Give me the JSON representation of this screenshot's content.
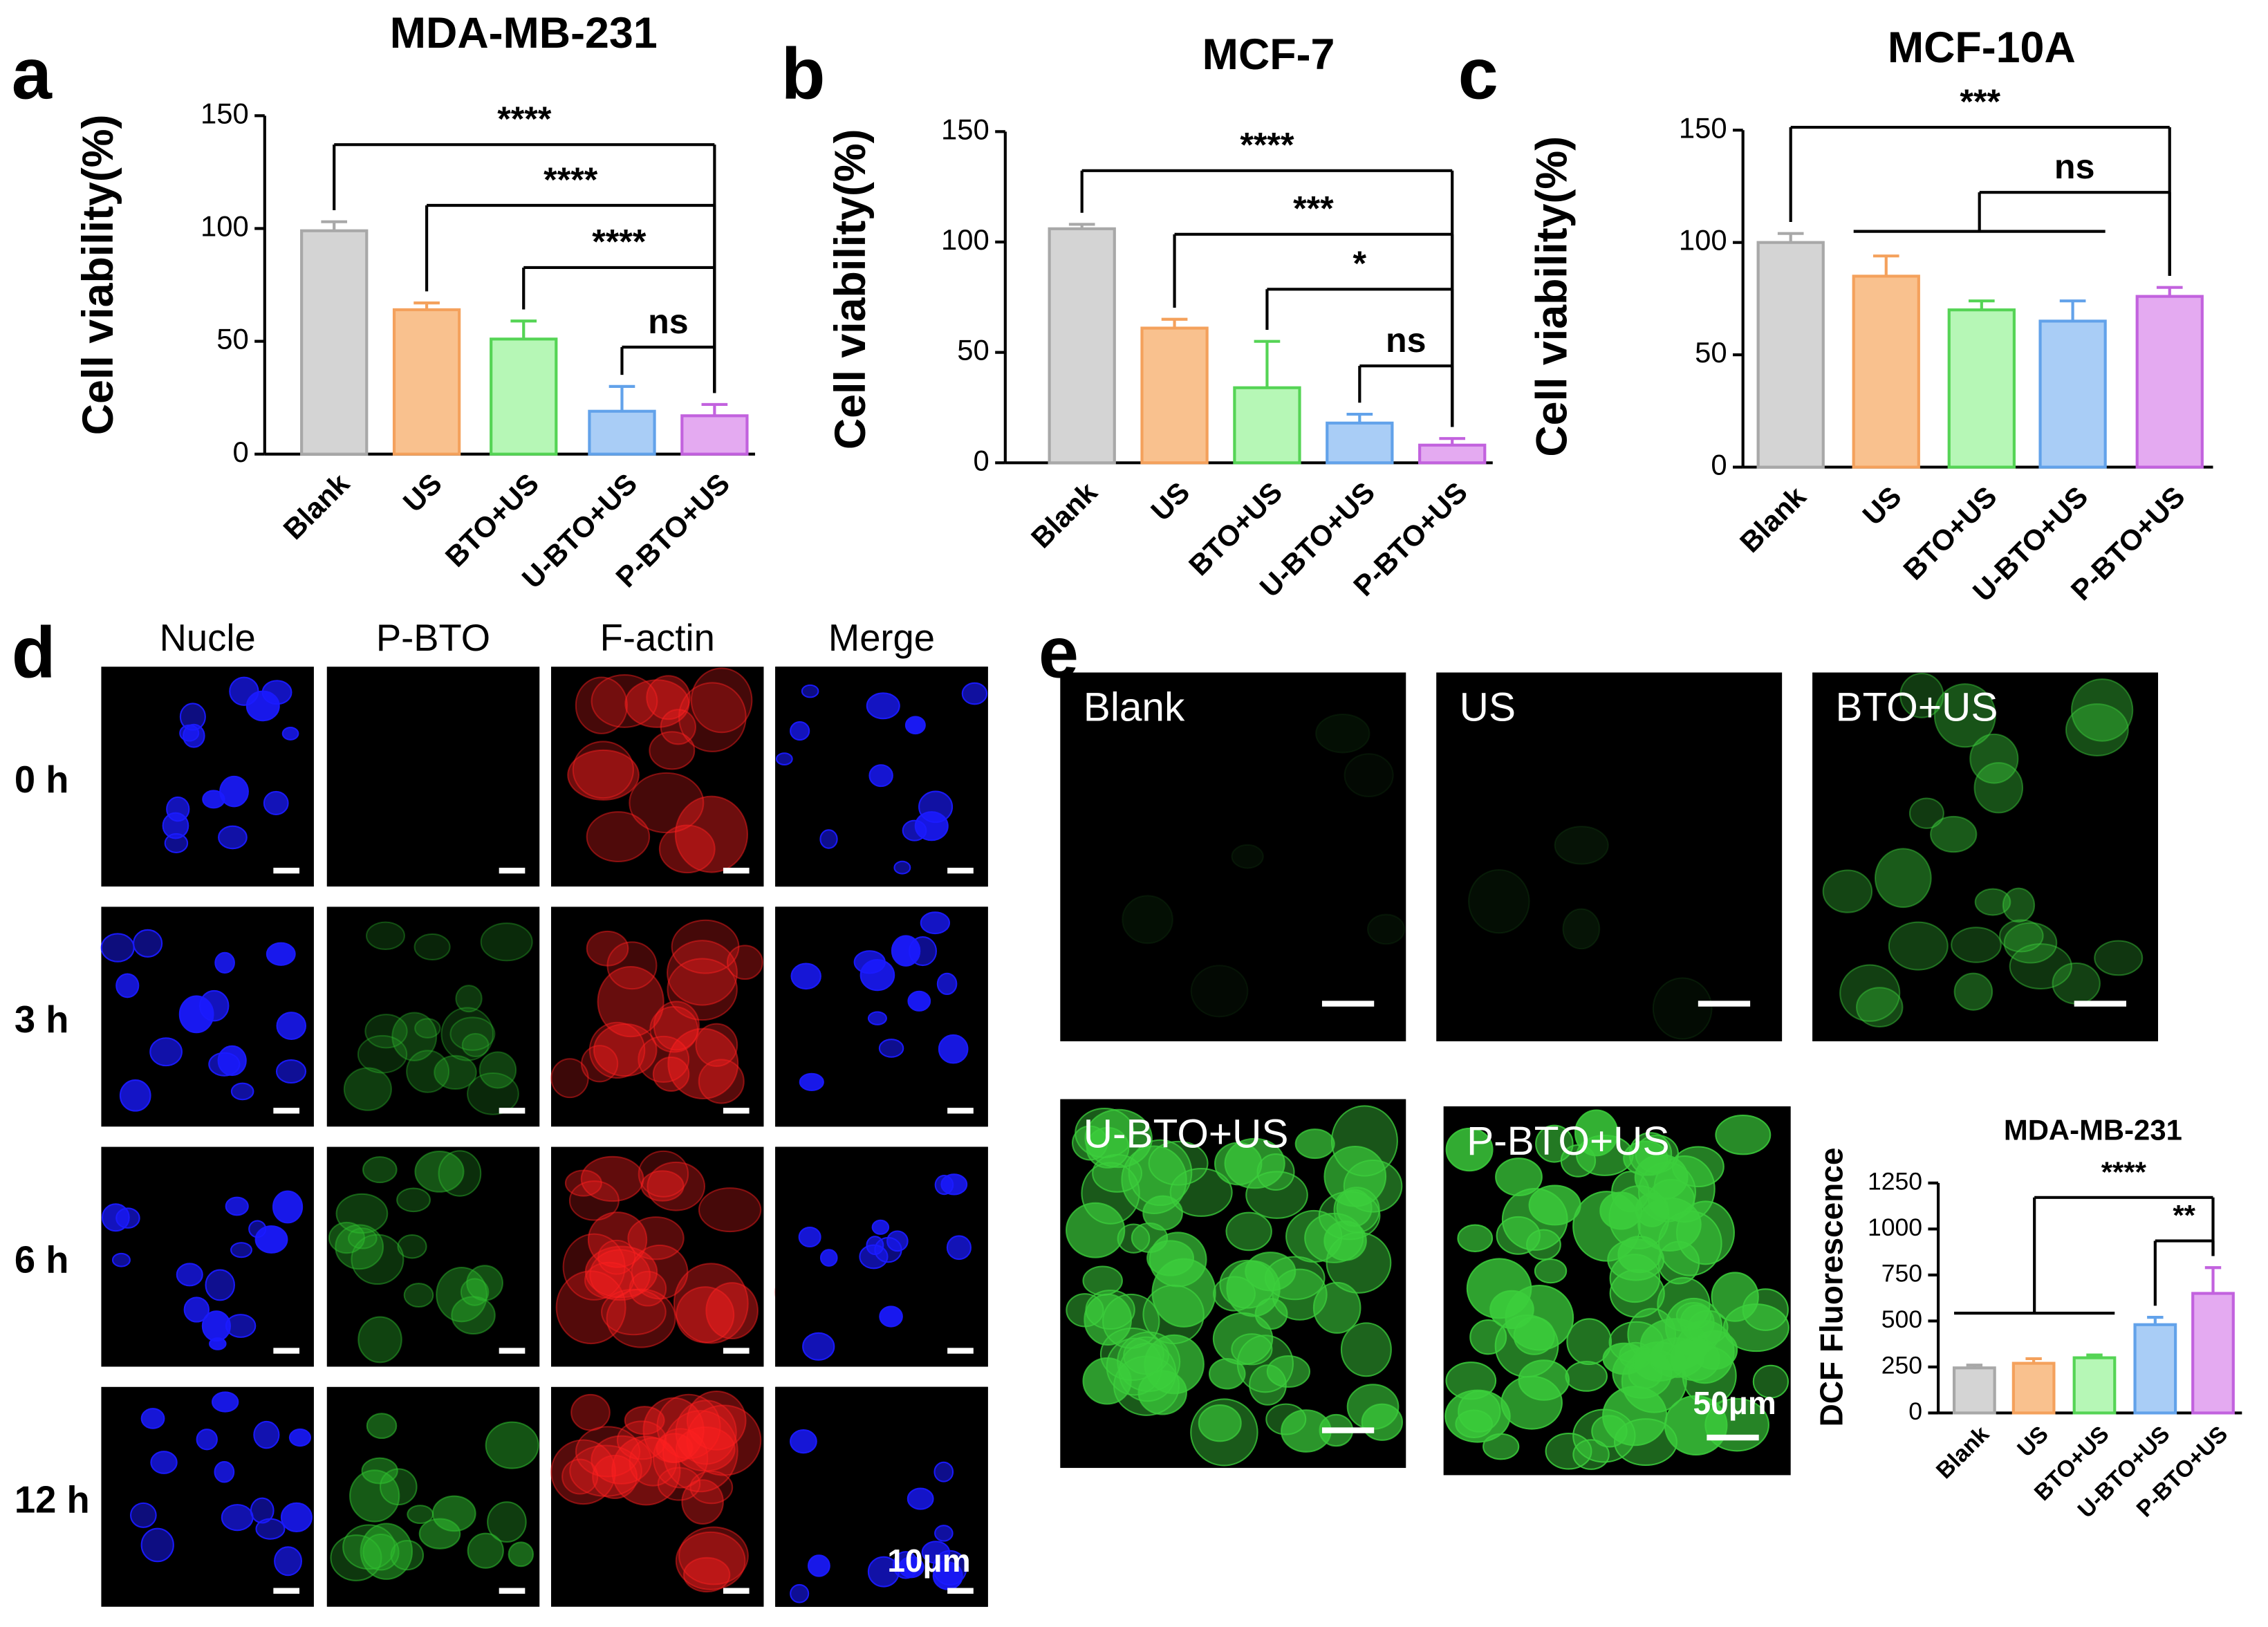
{
  "panel_letters": [
    "a",
    "b",
    "c",
    "d",
    "e"
  ],
  "chart_data": [
    {
      "type": "bar",
      "title": "MDA-MB-231",
      "y_label": "Cell viability(%)",
      "categories": [
        "Blank",
        "US",
        "BTO+US",
        "U-BTO+US",
        "P-BTO+US"
      ],
      "values": [
        99,
        64,
        51,
        19,
        17
      ],
      "errors": [
        4,
        3,
        8,
        11,
        5
      ],
      "colors": [
        "#d4d4d4",
        "#f9c18e",
        "#b6f7b6",
        "#a9cdf6",
        "#e4aaf1"
      ],
      "edge_colors": [
        "#a8a8a8",
        "#f4a15c",
        "#55d455",
        "#62a2ea",
        "#c262de"
      ],
      "ylim": [
        0,
        150
      ],
      "yticks": [
        0,
        50,
        100,
        150
      ],
      "annotations": [
        "****",
        "****",
        "****",
        "ns"
      ]
    },
    {
      "type": "bar",
      "title": "MCF-7",
      "y_label": "Cell viability(%)",
      "categories": [
        "Blank",
        "US",
        "BTO+US",
        "U-BTO+US",
        "P-BTO+US"
      ],
      "values": [
        106,
        61,
        34,
        18,
        8
      ],
      "errors": [
        2,
        4,
        21,
        4,
        3
      ],
      "colors": [
        "#d4d4d4",
        "#f9c18e",
        "#b6f7b6",
        "#a9cdf6",
        "#e4aaf1"
      ],
      "edge_colors": [
        "#a8a8a8",
        "#f4a15c",
        "#55d455",
        "#62a2ea",
        "#c262de"
      ],
      "ylim": [
        0,
        150
      ],
      "yticks": [
        0,
        50,
        100,
        150
      ],
      "annotations": [
        "****",
        "***",
        "*",
        "ns"
      ]
    },
    {
      "type": "bar",
      "title": "MCF-10A",
      "y_label": "Cell viability(%)",
      "categories": [
        "Blank",
        "US",
        "BTO+US",
        "U-BTO+US",
        "P-BTO+US"
      ],
      "values": [
        100,
        85,
        70,
        65,
        76
      ],
      "errors": [
        4,
        9,
        4,
        9,
        4
      ],
      "colors": [
        "#d4d4d4",
        "#f9c18e",
        "#b6f7b6",
        "#a9cdf6",
        "#e4aaf1"
      ],
      "edge_colors": [
        "#a8a8a8",
        "#f4a15c",
        "#55d455",
        "#62a2ea",
        "#c262de"
      ],
      "ylim": [
        0,
        150
      ],
      "yticks": [
        0,
        50,
        100,
        150
      ],
      "annotations": [
        "***",
        "ns"
      ]
    },
    {
      "type": "bar",
      "title": "MDA-MB-231",
      "y_label": "DCF Fluorescence",
      "categories": [
        "Blank",
        "US",
        "BTO+US",
        "U-BTO+US",
        "P-BTO+US"
      ],
      "values": [
        245,
        270,
        300,
        480,
        650
      ],
      "errors": [
        15,
        25,
        15,
        40,
        140
      ],
      "colors": [
        "#d4d4d4",
        "#f9c18e",
        "#b6f7b6",
        "#a9cdf6",
        "#e4aaf1"
      ],
      "edge_colors": [
        "#a8a8a8",
        "#f4a15c",
        "#55d455",
        "#62a2ea",
        "#c262de"
      ],
      "ylim": [
        0,
        1250
      ],
      "yticks": [
        0,
        250,
        500,
        750,
        1000,
        1250
      ],
      "annotations": [
        "****",
        "**"
      ]
    }
  ],
  "imaging_d": {
    "columns": [
      "Nucle",
      "P-BTO",
      "F-actin",
      "Merge"
    ],
    "rows": [
      "0 h",
      "3 h",
      "6 h",
      "12 h"
    ],
    "scale_bar": "10μm"
  },
  "imaging_e": {
    "panels": [
      "Blank",
      "US",
      "BTO+US",
      "U-BTO+US",
      "P-BTO+US"
    ],
    "scale_bar": "50μm"
  }
}
